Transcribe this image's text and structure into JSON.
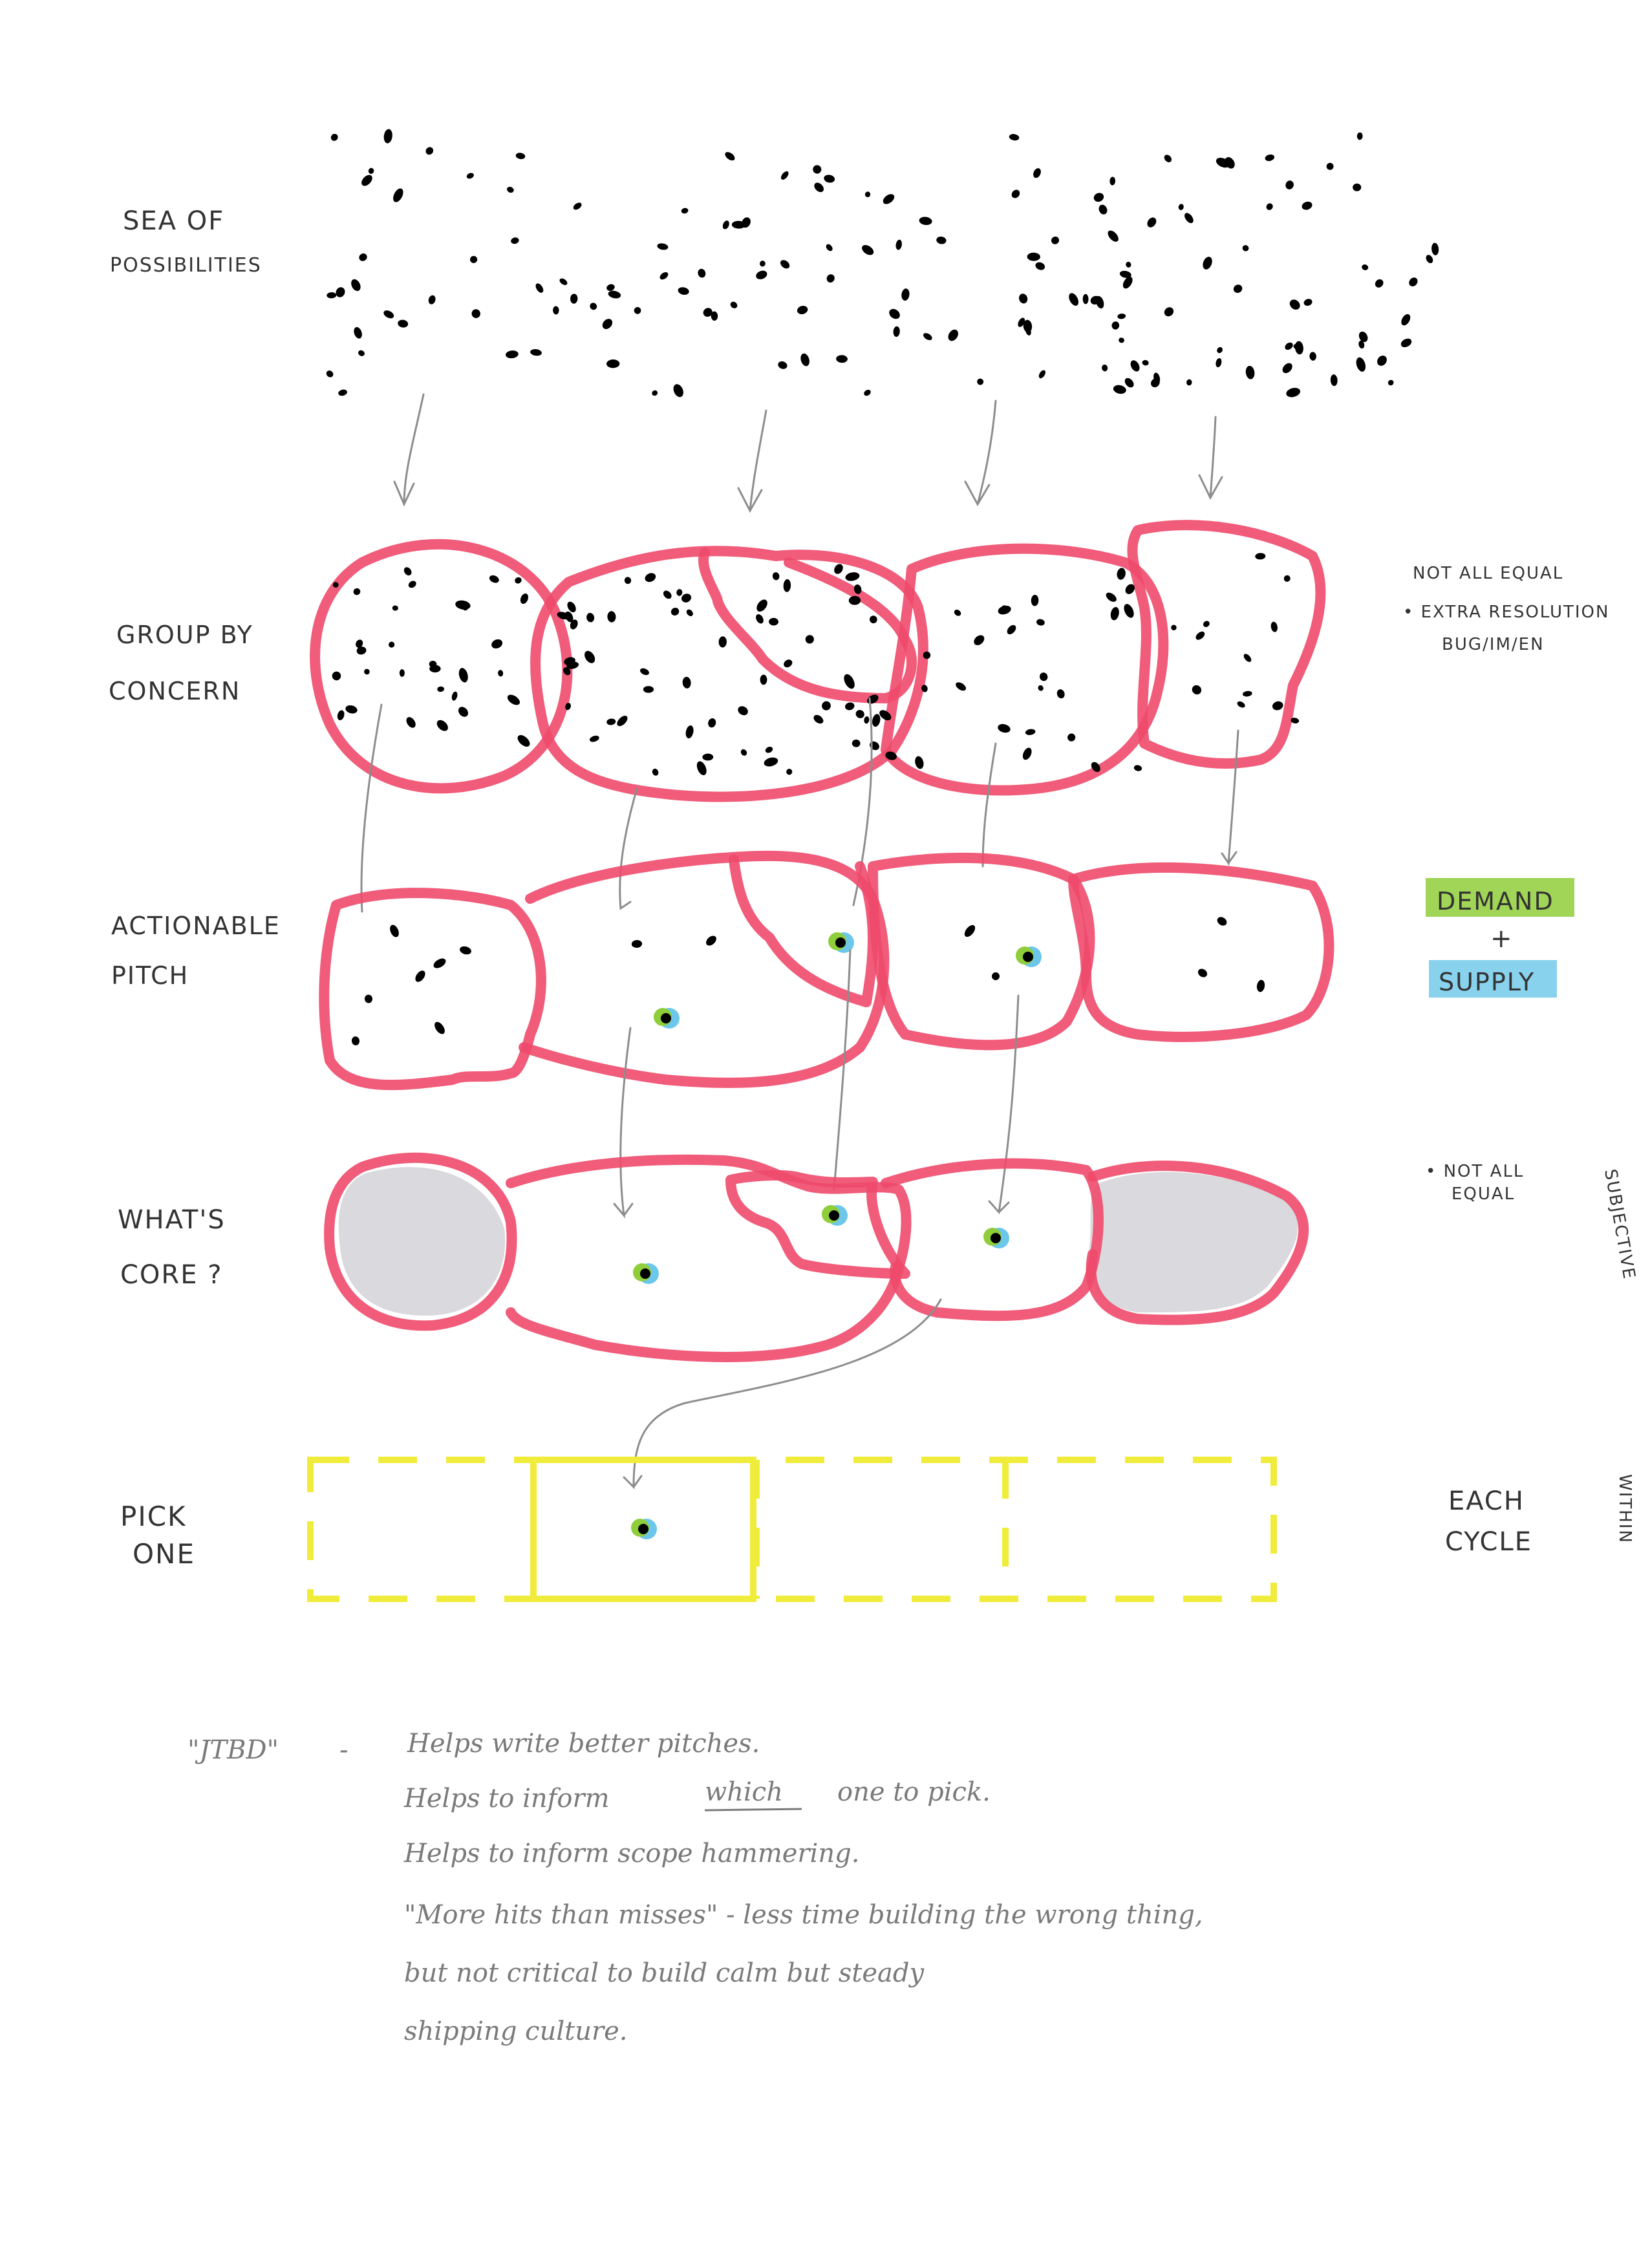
{
  "stages": [
    {
      "key": "sea",
      "lines": [
        "SEA OF",
        "POSSIBILITIES"
      ]
    },
    {
      "key": "group",
      "lines": [
        "GROUP BY",
        "CONCERN"
      ]
    },
    {
      "key": "pitch",
      "lines": [
        "ACTIONABLE",
        "PITCH"
      ]
    },
    {
      "key": "core",
      "lines": [
        "WHAT'S",
        "CORE ?"
      ]
    },
    {
      "key": "pick",
      "lines": [
        "PICK",
        "ONE"
      ]
    }
  ],
  "side_notes": {
    "group_line1": "NOT ALL EQUAL",
    "group_line2": "• EXTRA RESOLUTION",
    "group_line3": "BUG/IM/EN",
    "demand": "DEMAND",
    "plus": "+",
    "supply": "SUPPLY",
    "core_line1": "• NOT ALL",
    "core_line2": "EQUAL",
    "subjective": "SUBJECTIVE",
    "each_line1": "EACH",
    "each_line2": "CYCLE",
    "within": "WITHIN"
  },
  "notes": {
    "jtbd": "\"JTBD\"",
    "dash": "-",
    "line1": "Helps write better pitches.",
    "line2a": "Helps to inform",
    "line2b": "which",
    "line2c": "one to pick.",
    "line3": "Helps to inform scope hammering.",
    "line4": "\"More hits than misses\" - less time building the wrong thing,",
    "line5": "but not critical to build      calm but steady",
    "line6": "shipping culture."
  },
  "colors": {
    "pink": "#ee4a6b",
    "yellow": "#f0ec3c",
    "green": "#8fce3a",
    "blue": "#6cc7ea",
    "grey_fill": "#d9d9de"
  }
}
